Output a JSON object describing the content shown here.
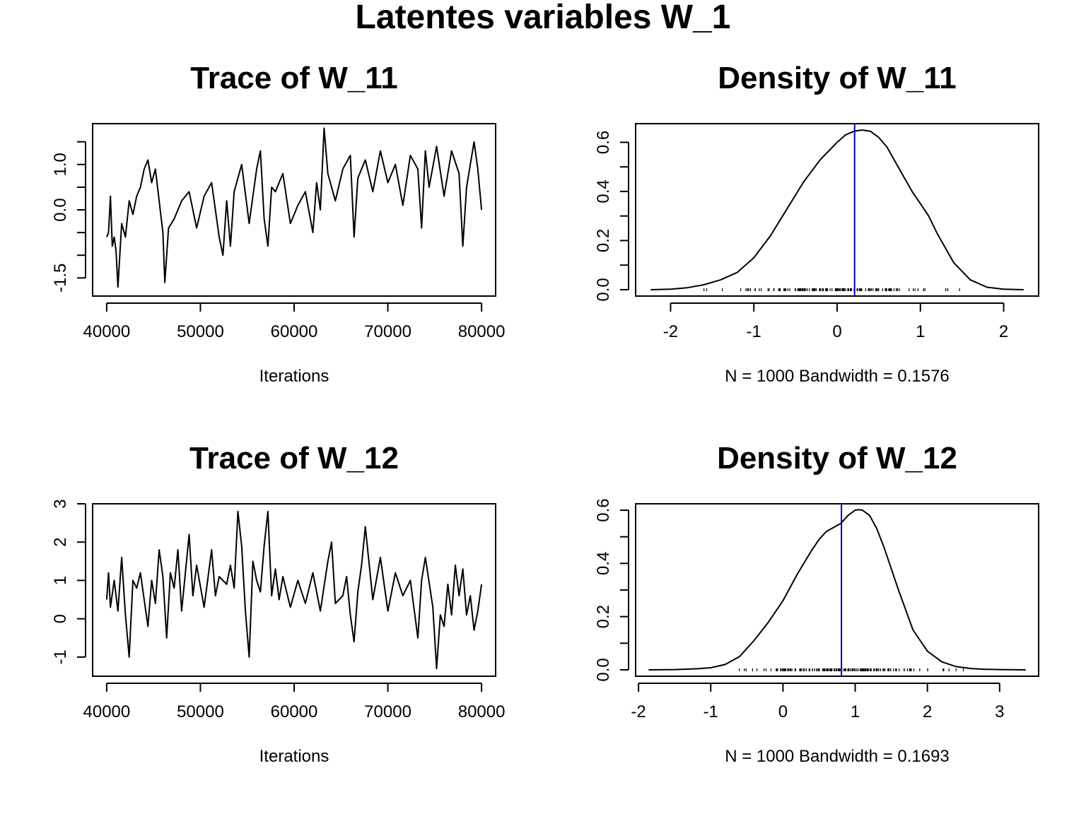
{
  "figure": {
    "title": "Latentes variables W_1"
  },
  "chart_data": [
    {
      "type": "line",
      "title": "Trace of W_11",
      "xlabel": "Iterations",
      "ylabel": "",
      "xlim": [
        38500,
        81500
      ],
      "ylim": [
        -1.9,
        1.9
      ],
      "x_ticks": [
        40000,
        50000,
        60000,
        70000,
        80000
      ],
      "x_tick_labels": [
        "40000",
        "50000",
        "60000",
        "70000",
        "80000"
      ],
      "y_ticks": [
        -1.5,
        -1.0,
        -0.5,
        0.0,
        0.5,
        1.0,
        1.5
      ],
      "y_tick_labels": [
        "-1.5",
        "",
        "",
        "0.0",
        "",
        "1.0",
        ""
      ],
      "series": [
        {
          "x": [
            40000,
            40200,
            40400,
            40600,
            40800,
            41000,
            41200,
            41600,
            42000,
            42400,
            42800,
            43200,
            43600,
            44000,
            44400,
            44800,
            45200,
            45600,
            46000,
            46200,
            46600,
            47200,
            48000,
            48800,
            49600,
            50400,
            51200,
            52000,
            52400,
            52800,
            53200,
            53600,
            54400,
            55200,
            56000,
            56400,
            56800,
            57200,
            57600,
            58000,
            58800,
            59600,
            60400,
            61200,
            62000,
            62400,
            62800,
            63200,
            63600,
            64400,
            65200,
            66000,
            66400,
            66800,
            67600,
            68400,
            69200,
            70000,
            70800,
            71600,
            72400,
            73200,
            73600,
            74000,
            74400,
            75200,
            76000,
            76800,
            77600,
            78000,
            78400,
            79200,
            79600,
            80000
          ],
          "y": [
            -0.6,
            -0.5,
            0.3,
            -0.8,
            -0.6,
            -0.9,
            -1.7,
            -0.3,
            -0.6,
            0.2,
            -0.1,
            0.3,
            0.5,
            0.9,
            1.1,
            0.6,
            0.9,
            0.2,
            -0.5,
            -1.6,
            -0.4,
            -0.2,
            0.2,
            0.4,
            -0.4,
            0.3,
            0.6,
            -0.6,
            -1.0,
            0.2,
            -0.8,
            0.4,
            1.0,
            -0.3,
            0.9,
            1.3,
            -0.2,
            -0.8,
            0.5,
            0.4,
            0.8,
            -0.3,
            0.1,
            0.4,
            -0.5,
            0.6,
            0.0,
            1.8,
            0.8,
            0.2,
            0.9,
            1.2,
            -0.6,
            0.7,
            1.1,
            0.4,
            1.3,
            0.6,
            1.0,
            0.1,
            1.2,
            0.9,
            -0.4,
            1.3,
            0.5,
            1.4,
            0.3,
            1.3,
            0.8,
            -0.8,
            0.5,
            1.5,
            0.9,
            0.0
          ]
        }
      ]
    },
    {
      "type": "line",
      "title": "Density of W_11",
      "xlabel": "N = 1000   Bandwidth = 0.1576",
      "ylabel": "",
      "xlim": [
        -2.42,
        2.42
      ],
      "ylim": [
        -0.026,
        0.676
      ],
      "x_ticks": [
        -2,
        -1,
        0,
        1,
        2
      ],
      "x_tick_labels": [
        "-2",
        "-1",
        "0",
        "1",
        "2"
      ],
      "y_ticks": [
        0.0,
        0.1,
        0.2,
        0.3,
        0.4,
        0.5,
        0.6
      ],
      "y_tick_labels": [
        "0.0",
        "",
        "0.2",
        "",
        "0.4",
        "",
        "0.6"
      ],
      "vline": 0.21,
      "vline_color": "#0000cc",
      "rug_range": [
        -1.8,
        1.8
      ],
      "series": [
        {
          "x": [
            -2.24,
            -2.0,
            -1.8,
            -1.6,
            -1.4,
            -1.2,
            -1.0,
            -0.8,
            -0.6,
            -0.4,
            -0.2,
            0.0,
            0.1,
            0.2,
            0.3,
            0.4,
            0.5,
            0.6,
            0.7,
            0.8,
            0.9,
            1.0,
            1.1,
            1.2,
            1.4,
            1.6,
            1.8,
            2.0,
            2.24
          ],
          "y": [
            0.0,
            0.002,
            0.008,
            0.02,
            0.04,
            0.07,
            0.13,
            0.22,
            0.33,
            0.44,
            0.53,
            0.6,
            0.63,
            0.645,
            0.65,
            0.645,
            0.62,
            0.58,
            0.52,
            0.46,
            0.4,
            0.35,
            0.3,
            0.23,
            0.11,
            0.04,
            0.01,
            0.002,
            0.0
          ]
        }
      ]
    },
    {
      "type": "line",
      "title": "Trace of W_12",
      "xlabel": "Iterations",
      "ylabel": "",
      "xlim": [
        38500,
        81500
      ],
      "ylim": [
        -1.5,
        3.0
      ],
      "x_ticks": [
        40000,
        50000,
        60000,
        70000,
        80000
      ],
      "x_tick_labels": [
        "40000",
        "50000",
        "60000",
        "70000",
        "80000"
      ],
      "y_ticks": [
        -1,
        0,
        1,
        2,
        3
      ],
      "y_tick_labels": [
        "-1",
        "0",
        "1",
        "2",
        "3"
      ],
      "series": [
        {
          "x": [
            40000,
            40200,
            40400,
            40800,
            41200,
            41600,
            42000,
            42400,
            42800,
            43200,
            43600,
            44000,
            44400,
            44800,
            45200,
            45600,
            46000,
            46400,
            46800,
            47200,
            47600,
            48000,
            48400,
            48800,
            49200,
            49600,
            50400,
            51200,
            51600,
            52000,
            52800,
            53200,
            53600,
            54000,
            54400,
            54800,
            55200,
            55600,
            56000,
            56400,
            56800,
            57200,
            57600,
            58000,
            58400,
            58800,
            59600,
            60400,
            61200,
            62000,
            62800,
            63600,
            64000,
            64400,
            65200,
            65600,
            66000,
            66400,
            66800,
            67200,
            67600,
            68400,
            69200,
            70000,
            70800,
            71600,
            72400,
            73200,
            73600,
            74000,
            74800,
            75200,
            75600,
            76000,
            76400,
            76800,
            77200,
            77600,
            78000,
            78400,
            78800,
            79200,
            79600,
            80000
          ],
          "y": [
            0.5,
            1.2,
            0.3,
            1.0,
            0.2,
            1.6,
            0.1,
            -1.0,
            1.0,
            0.8,
            1.2,
            0.5,
            -0.2,
            1.0,
            0.4,
            1.8,
            1.1,
            -0.5,
            1.2,
            0.8,
            1.8,
            0.2,
            1.2,
            2.2,
            0.6,
            1.4,
            0.3,
            1.8,
            0.6,
            1.1,
            0.9,
            1.4,
            0.8,
            2.8,
            1.9,
            0.2,
            -1.0,
            1.5,
            1.0,
            0.7,
            1.9,
            2.8,
            0.6,
            1.3,
            0.5,
            1.1,
            0.3,
            1.0,
            0.4,
            1.2,
            0.2,
            1.5,
            2.0,
            0.4,
            0.6,
            1.1,
            0.1,
            -0.6,
            0.7,
            1.4,
            2.4,
            0.5,
            1.6,
            0.2,
            1.2,
            0.6,
            1.0,
            -0.5,
            1.0,
            1.6,
            0.3,
            -1.3,
            0.1,
            -0.2,
            0.9,
            0.1,
            1.4,
            0.6,
            1.3,
            0.1,
            0.6,
            -0.3,
            0.2,
            0.9
          ]
        }
      ]
    },
    {
      "type": "line",
      "title": "Density of W_12",
      "xlabel": "N = 1000   Bandwidth = 0.1693",
      "ylabel": "",
      "xlim": [
        -2.04,
        3.54
      ],
      "ylim": [
        -0.024,
        0.624
      ],
      "x_ticks": [
        -2,
        -1,
        0,
        1,
        2,
        3
      ],
      "x_tick_labels": [
        "-2",
        "-1",
        "0",
        "1",
        "2",
        "3"
      ],
      "y_ticks": [
        0.0,
        0.1,
        0.2,
        0.3,
        0.4,
        0.5,
        0.6
      ],
      "y_tick_labels": [
        "0.0",
        "",
        "0.2",
        "",
        "0.4",
        "",
        "0.6"
      ],
      "vline": 0.81,
      "vline_color": "#0000cc",
      "rug_range": [
        -1.0,
        2.85
      ],
      "series": [
        {
          "x": [
            -1.86,
            -1.5,
            -1.2,
            -1.0,
            -0.8,
            -0.6,
            -0.4,
            -0.2,
            0.0,
            0.2,
            0.4,
            0.5,
            0.6,
            0.7,
            0.8,
            0.9,
            1.0,
            1.05,
            1.1,
            1.2,
            1.3,
            1.4,
            1.6,
            1.8,
            2.0,
            2.2,
            2.4,
            2.6,
            2.8,
            3.0,
            3.36
          ],
          "y": [
            0.0,
            0.001,
            0.004,
            0.008,
            0.02,
            0.05,
            0.11,
            0.18,
            0.26,
            0.36,
            0.45,
            0.49,
            0.52,
            0.535,
            0.55,
            0.58,
            0.6,
            0.602,
            0.6,
            0.58,
            0.53,
            0.46,
            0.3,
            0.15,
            0.07,
            0.03,
            0.012,
            0.005,
            0.002,
            0.001,
            0.0
          ]
        }
      ]
    }
  ]
}
